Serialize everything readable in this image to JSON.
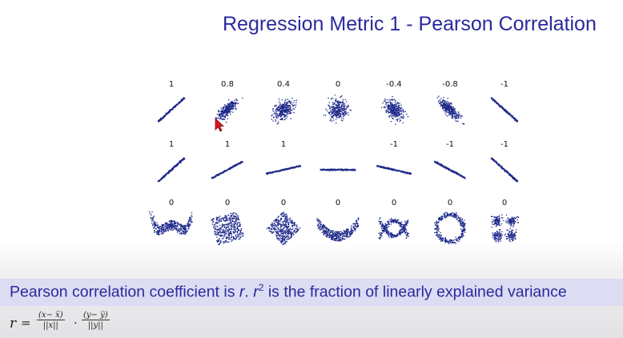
{
  "slide": {
    "title": "Regression Metric 1 - Pearson Correlation",
    "caption": {
      "part1": "Pearson correlation coefficient is ",
      "r1": "r",
      "dot": ". ",
      "r2": "r",
      "exp": "2",
      "part2": " is the fraction of linearly explained variance"
    },
    "formula": {
      "lhs": "r",
      "eq": "=",
      "num1": "(x− x̅)",
      "den1": "||x||",
      "mult": "·",
      "num2": "(y− y̅)",
      "den2": "||y||"
    }
  },
  "colors": {
    "title": "#2a2a9c",
    "points": "#1f2a8a",
    "bar": "#dcdcf3"
  },
  "chart_data": {
    "type": "scatter",
    "rows": [
      {
        "labels": [
          "1",
          "0.8",
          "0.4",
          "0",
          "-0.4",
          "-0.8",
          "-1"
        ],
        "kinds": [
          "line",
          "ellipse",
          "ellipse",
          "ellipse",
          "ellipse",
          "ellipse",
          "line"
        ],
        "values": [
          1,
          0.8,
          0.4,
          0,
          -0.4,
          -0.8,
          -1
        ]
      },
      {
        "labels": [
          "1",
          "1",
          "1",
          "",
          "-1",
          "-1",
          "-1"
        ],
        "kinds": [
          "line",
          "line",
          "line",
          "line",
          "line",
          "line",
          "line"
        ],
        "slopes": [
          1,
          0.6,
          0.25,
          0,
          -0.25,
          -0.6,
          -1
        ]
      },
      {
        "labels": [
          "0",
          "0",
          "0",
          "0",
          "0",
          "0",
          "0"
        ],
        "kinds": [
          "w-shape",
          "square",
          "diamond",
          "parabola",
          "x-cross",
          "ring",
          "four-clusters"
        ],
        "values": [
          0,
          0,
          0,
          0,
          0,
          0,
          0
        ]
      }
    ]
  }
}
